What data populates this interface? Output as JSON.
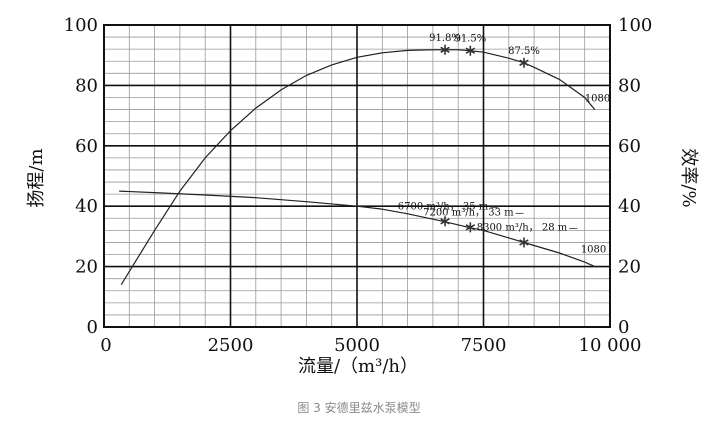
{
  "caption": "图 3 安德里兹水泵模型",
  "chart_data": {
    "type": "line",
    "xlabel": "流量/（m³/h）",
    "ylabel_left": "扬程/m",
    "ylabel_right": "效率/%",
    "xlim": [
      0,
      10000
    ],
    "ylim_left": [
      0,
      100
    ],
    "ylim_right": [
      0,
      100
    ],
    "grid": true,
    "x_ticks": [
      "0",
      "2500",
      "5000",
      "7500",
      "10 000"
    ],
    "y_ticks_left": [
      "0",
      "20",
      "40",
      "60",
      "80",
      "100"
    ],
    "y_ticks_right": [
      "0",
      "20",
      "40",
      "60",
      "80",
      "100"
    ],
    "series": [
      {
        "axis": "right",
        "end_label": "1080",
        "x": [
          340,
          1000,
          1500,
          2000,
          2500,
          3000,
          3500,
          4000,
          4500,
          5000,
          5500,
          6000,
          6500,
          6740,
          7000,
          7240,
          7500,
          8000,
          8300,
          8500,
          9000,
          9500,
          9700
        ],
        "y": [
          14,
          32,
          45,
          56,
          65,
          72.5,
          78.5,
          83.3,
          86.8,
          89.3,
          90.8,
          91.6,
          91.8,
          91.8,
          91.8,
          91.5,
          91,
          89,
          87.5,
          86,
          82,
          76,
          72
        ]
      },
      {
        "axis": "left",
        "end_label": "1080",
        "x": [
          300,
          1000,
          2000,
          3000,
          4000,
          5000,
          5500,
          6000,
          6700,
          7200,
          7500,
          8000,
          8300,
          8500,
          9000,
          9500,
          9700
        ],
        "y": [
          45,
          44.5,
          43.7,
          42.8,
          41.5,
          40,
          39,
          37.5,
          35,
          33,
          32,
          29.5,
          28,
          27,
          24.5,
          21.5,
          20
        ]
      }
    ],
    "annotations": [
      {
        "axis": "right",
        "x": 6740,
        "y": 91.8,
        "label": "91.8%"
      },
      {
        "axis": "right",
        "x": 7240,
        "y": 91.5,
        "label": "91.5%"
      },
      {
        "axis": "right",
        "x": 8300,
        "y": 87.5,
        "label": "87.5%"
      },
      {
        "axis": "left",
        "x": 6740,
        "y": 35,
        "label": "6700 m³/h， 35 m"
      },
      {
        "axis": "left",
        "x": 7240,
        "y": 33,
        "label": "7200 m³/h， 33 m"
      },
      {
        "axis": "left",
        "x": 8300,
        "y": 28,
        "label": "8300 m³/h， 28 m"
      }
    ]
  }
}
